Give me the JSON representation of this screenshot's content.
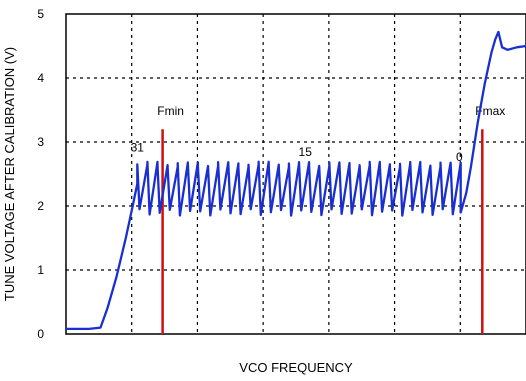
{
  "chart_data": {
    "type": "line",
    "title": "",
    "xlabel": "VCO FREQUENCY",
    "ylabel": "TUNE VOLTAGE AFTER CALIBRATION (V)",
    "ylim": [
      0,
      5
    ],
    "xlim": [
      0,
      100
    ],
    "yticks": [
      "0",
      "1",
      "2",
      "3",
      "4",
      "5"
    ],
    "grid": true,
    "series": [
      {
        "color": "#1a2fd1",
        "rise": [
          [
            0,
            0.08
          ],
          [
            5,
            0.08
          ],
          [
            7.5,
            0.1
          ],
          [
            9,
            0.4
          ],
          [
            11,
            0.9
          ],
          [
            13,
            1.5
          ],
          [
            14.5,
            2.0
          ],
          [
            15.5,
            2.35
          ]
        ],
        "saw_x_start": 15.5,
        "saw_x_end": 85.8,
        "saw_teeth": 32,
        "saw_low": 1.9,
        "saw_high": 2.65,
        "tail": [
          [
            85.8,
            1.9
          ],
          [
            87,
            2.2
          ],
          [
            88,
            2.6
          ],
          [
            89.5,
            3.3
          ],
          [
            91,
            3.9
          ],
          [
            92.5,
            4.4
          ],
          [
            93.3,
            4.6
          ],
          [
            94,
            4.72
          ],
          [
            94.8,
            4.48
          ],
          [
            96,
            4.44
          ],
          [
            98,
            4.48
          ],
          [
            100,
            4.5
          ]
        ]
      }
    ],
    "markers": [
      {
        "label": "Fmin",
        "x": 21,
        "y_top": 3.2,
        "color": "#cc1111"
      },
      {
        "label": "Fmax",
        "x": 90.5,
        "y_top": 3.2,
        "color": "#cc1111"
      }
    ],
    "annotations": [
      {
        "text": "31",
        "x": 15.5,
        "y": 2.85
      },
      {
        "text": "15",
        "x": 52,
        "y": 2.78
      },
      {
        "text": "0",
        "x": 85.5,
        "y": 2.7
      }
    ]
  }
}
